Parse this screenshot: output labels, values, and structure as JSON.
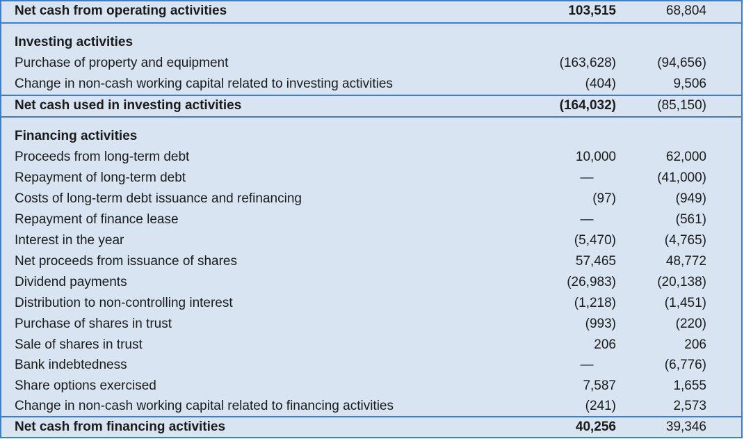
{
  "operating": {
    "total_label": "Net cash from operating activities",
    "total_current": "103,515",
    "total_prior": "68,804"
  },
  "investing": {
    "heading": "Investing activities",
    "items": [
      {
        "label": "Purchase of property and equipment",
        "current": "(163,628)",
        "prior": "(94,656)"
      },
      {
        "label": "Change in non-cash working capital related to investing activities",
        "current": "(404)",
        "prior": "9,506"
      }
    ],
    "total_label": "Net cash used in investing activities",
    "total_current": "(164,032)",
    "total_prior": "(85,150)"
  },
  "financing": {
    "heading": "Financing activities",
    "items": [
      {
        "label": "Proceeds from long-term debt",
        "current": "10,000",
        "prior": "62,000"
      },
      {
        "label": "Repayment of long-term debt",
        "current": "—",
        "prior": "(41,000)"
      },
      {
        "label": "Costs of long-term debt issuance and refinancing",
        "current": "(97)",
        "prior": "(949)"
      },
      {
        "label": "Repayment of finance lease",
        "current": "—",
        "prior": "(561)"
      },
      {
        "label": "Interest in the year",
        "current": "(5,470)",
        "prior": "(4,765)"
      },
      {
        "label": "Net proceeds from issuance of shares",
        "current": "57,465",
        "prior": "48,772"
      },
      {
        "label": "Dividend payments",
        "current": "(26,983)",
        "prior": "(20,138)"
      },
      {
        "label": "Distribution to non-controlling interest",
        "current": "(1,218)",
        "prior": "(1,451)"
      },
      {
        "label": "Purchase of shares in trust",
        "current": "(993)",
        "prior": "(220)"
      },
      {
        "label": "Sale of shares in trust",
        "current": "206",
        "prior": "206"
      },
      {
        "label": "Bank indebtedness",
        "current": "—",
        "prior": "(6,776)"
      },
      {
        "label": "Share options exercised",
        "current": "7,587",
        "prior": "1,655"
      },
      {
        "label": "Change in non-cash working capital related to financing activities",
        "current": "(241)",
        "prior": "2,573"
      }
    ],
    "total_label": "Net cash from financing activities",
    "total_current": "40,256",
    "total_prior": "39,346"
  },
  "colors": {
    "background": "#d9e4f2",
    "rule": "#3f7fc1"
  }
}
